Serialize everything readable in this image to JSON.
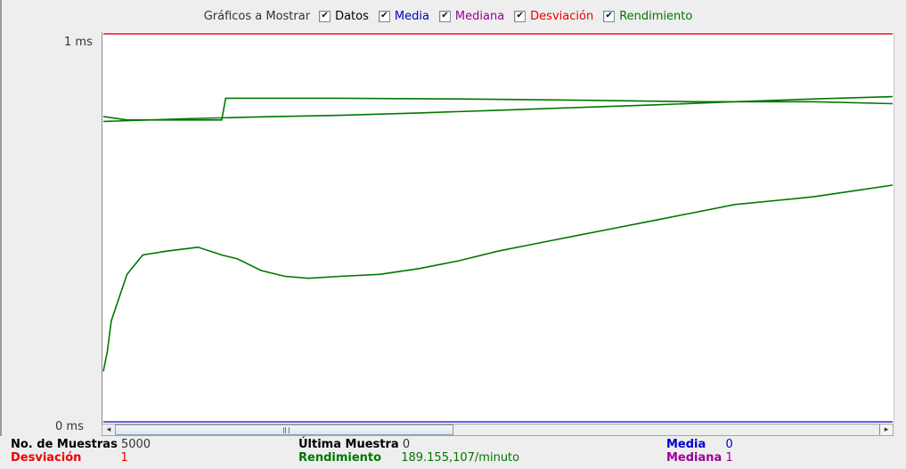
{
  "legend": {
    "title": "Gráficos a Mostrar",
    "items": [
      {
        "label": "Datos",
        "color": "#000000",
        "checked": true,
        "name": "datos"
      },
      {
        "label": "Media",
        "color": "#0000cc",
        "checked": true,
        "name": "media"
      },
      {
        "label": "Mediana",
        "color": "#990099",
        "checked": true,
        "name": "mediana"
      },
      {
        "label": "Desviación",
        "color": "#ee0000",
        "checked": true,
        "name": "desviacion"
      },
      {
        "label": "Rendimiento",
        "color": "#007700",
        "checked": true,
        "name": "rendimiento"
      }
    ],
    "check_glyph": "✔"
  },
  "axis": {
    "top_label": "1 ms",
    "bottom_label": "0 ms"
  },
  "chart_data": {
    "type": "line",
    "ylim": [
      0,
      1
    ],
    "ylabel_ticks": [
      "0 ms",
      "1 ms"
    ],
    "grid": false,
    "series": [
      {
        "name": "Media",
        "color": "#0000cc",
        "x": [
          0,
          100
        ],
        "y": [
          0,
          0
        ]
      },
      {
        "name": "Mediana",
        "color": "#990099",
        "x": [
          0,
          100
        ],
        "y": [
          1,
          1
        ]
      },
      {
        "name": "Desviación",
        "color": "#ee0000",
        "x": [
          0,
          100
        ],
        "y": [
          1,
          1
        ]
      },
      {
        "name": "Rendimiento",
        "color": "#007700",
        "x": [
          0,
          3,
          15,
          15.5,
          30,
          45,
          60,
          75,
          90,
          100
        ],
        "y": [
          0.787,
          0.778,
          0.778,
          0.834,
          0.834,
          0.832,
          0.829,
          0.825,
          0.825,
          0.82
        ]
      },
      {
        "name": "Rendimiento",
        "color": "#007700",
        "x": [
          0,
          10,
          20,
          30,
          40,
          50,
          60,
          70,
          80,
          90,
          100
        ],
        "y": [
          0.774,
          0.781,
          0.786,
          0.79,
          0.796,
          0.803,
          0.81,
          0.817,
          0.825,
          0.832,
          0.838
        ]
      },
      {
        "name": "Rendimiento",
        "color": "#007700",
        "x": [
          0,
          0.5,
          1,
          2,
          3,
          5,
          8,
          12,
          15,
          17,
          20,
          23,
          26,
          30,
          35,
          40,
          45,
          50,
          55,
          60,
          65,
          70,
          75,
          80,
          85,
          90,
          95,
          100
        ],
        "y": [
          0.13,
          0.18,
          0.26,
          0.32,
          0.38,
          0.43,
          0.44,
          0.45,
          0.43,
          0.42,
          0.39,
          0.375,
          0.37,
          0.375,
          0.38,
          0.395,
          0.415,
          0.44,
          0.46,
          0.48,
          0.5,
          0.52,
          0.54,
          0.56,
          0.57,
          0.58,
          0.595,
          0.61
        ]
      }
    ]
  },
  "stats": {
    "samples_label": "No. de Muestras",
    "samples_value": "5000",
    "last_label": "Última Muestra",
    "last_value": "0",
    "mean_label": "Media",
    "mean_value": "0",
    "deviation_label": "Desviación",
    "deviation_value": "1",
    "throughput_label": "Rendimiento",
    "throughput_value": "189.155,107/minuto",
    "median_label": "Mediana",
    "median_value": "1"
  },
  "scrollbar": {
    "left_arrow": "◂",
    "right_arrow": "▸"
  }
}
